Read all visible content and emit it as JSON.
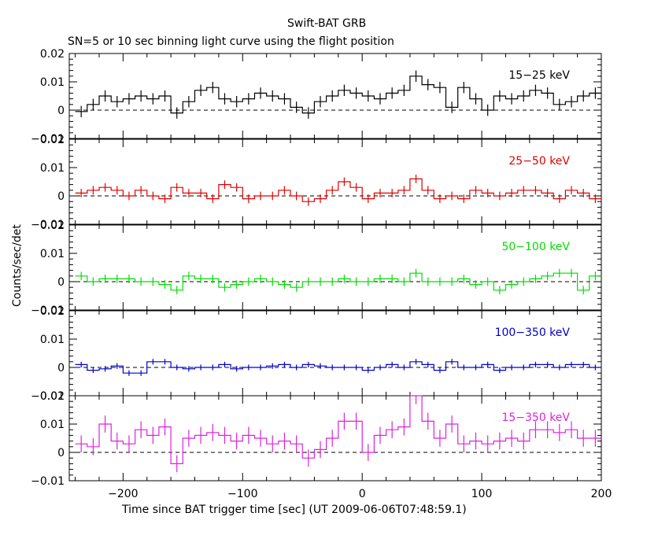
{
  "header": {
    "title": "Swift-BAT GRB",
    "subtitle": "SN=5 or 10 sec binning light curve using the flight position"
  },
  "axes": {
    "ylabel": "Counts/sec/det",
    "xlabel": "Time since BAT trigger time [sec] (UT 2009-06-06T07:48:59.1)",
    "xlim": [
      -245,
      200
    ],
    "xticks": [
      -200,
      -100,
      0,
      100,
      200
    ],
    "xtick_labels": [
      "−200",
      "−100",
      "0",
      "100",
      "200"
    ]
  },
  "chart_data": {
    "type": "line",
    "step": true,
    "bin_width_sec": 10,
    "x_start": -240,
    "x_end": 200,
    "x_centers": [
      -235,
      -225,
      -215,
      -205,
      -195,
      -185,
      -175,
      -165,
      -155,
      -145,
      -135,
      -125,
      -115,
      -105,
      -95,
      -85,
      -75,
      -65,
      -55,
      -45,
      -35,
      -25,
      -15,
      -5,
      5,
      15,
      25,
      35,
      45,
      55,
      65,
      75,
      85,
      95,
      105,
      115,
      125,
      135,
      145,
      155,
      165,
      175,
      185,
      195
    ],
    "panels": [
      {
        "name": "15−25 keV",
        "color": "#000000",
        "ylim": [
          -0.01,
          0.02
        ],
        "yticks": [
          -0.01,
          0,
          0.01,
          0.02
        ],
        "ytick_labels": [
          "−0.01",
          "0",
          "0.01",
          "0.02"
        ],
        "values": [
          -0.0005,
          0.002,
          0.005,
          0.003,
          0.004,
          0.005,
          0.004,
          0.005,
          -0.001,
          0.003,
          0.007,
          0.008,
          0.004,
          0.003,
          0.004,
          0.006,
          0.005,
          0.004,
          0.001,
          -0.001,
          0.003,
          0.005,
          0.007,
          0.006,
          0.005,
          0.004,
          0.006,
          0.007,
          0.012,
          0.009,
          0.008,
          0.001,
          0.008,
          0.004,
          0,
          0.005,
          0.004,
          0.005,
          0.007,
          0.006,
          0.002,
          0.003,
          0.005,
          0.006
        ],
        "error": 0.002
      },
      {
        "name": "25−50 keV",
        "color": "#dd0000",
        "ylim": [
          -0.01,
          0.02
        ],
        "yticks": [
          -0.01,
          0,
          0.01,
          0.02
        ],
        "ytick_labels": [
          "−0.01",
          "0",
          "0.01",
          "0.02"
        ],
        "values": [
          0.001,
          0.002,
          0.003,
          0.002,
          0,
          0.002,
          0,
          -0.001,
          0.003,
          0.001,
          0.001,
          -0.001,
          0.004,
          0.003,
          -0.001,
          0,
          0,
          0.002,
          0,
          -0.002,
          -0.001,
          0.002,
          0.005,
          0.003,
          -0.001,
          0.001,
          0.001,
          0.002,
          0.006,
          0.002,
          -0.001,
          0,
          -0.001,
          0.002,
          0.001,
          0,
          0.001,
          0.002,
          0.002,
          0.001,
          -0.001,
          0.002,
          0.001,
          -0.001
        ],
        "error": 0.0015
      },
      {
        "name": "50−100 keV",
        "color": "#00dd00",
        "ylim": [
          -0.01,
          0.02
        ],
        "yticks": [
          -0.01,
          0,
          0.01,
          0.02
        ],
        "ytick_labels": [
          "−0.01",
          "0",
          "0.01",
          "0.02"
        ],
        "values": [
          0.002,
          0,
          0.001,
          0.001,
          0.001,
          0,
          0,
          -0.001,
          -0.003,
          0.002,
          0.001,
          0.001,
          -0.002,
          -0.001,
          0,
          0.001,
          0,
          -0.001,
          -0.002,
          0,
          0,
          0,
          0.001,
          0,
          0,
          0.001,
          0.001,
          0,
          0.003,
          0,
          0,
          0,
          0.001,
          -0.001,
          0,
          -0.003,
          -0.001,
          0,
          0.001,
          0.002,
          0.003,
          0.003,
          -0.003,
          0.002
        ],
        "error": 0.0015
      },
      {
        "name": "100−350 keV",
        "color": "#0000cc",
        "ylim": [
          -0.01,
          0.02
        ],
        "yticks": [
          -0.01,
          0,
          0.01,
          0.02
        ],
        "ytick_labels": [
          "−0.01",
          "0",
          "0.01",
          "0.02"
        ],
        "values": [
          0.001,
          -0.001,
          -0.0005,
          0.0005,
          -0.002,
          -0.002,
          0.002,
          0.002,
          0,
          -0.0005,
          0,
          0,
          0.001,
          -0.0005,
          0,
          0,
          0.0005,
          0.001,
          0,
          0.001,
          0.0005,
          0,
          0,
          0,
          -0.001,
          0,
          0.001,
          0,
          0.002,
          0.001,
          -0.001,
          0.002,
          0,
          0,
          0.001,
          -0.001,
          0,
          0,
          0.001,
          0.001,
          0,
          0.001,
          0.001,
          0
        ],
        "error": 0.001
      },
      {
        "name": "15−350 keV",
        "color": "#dd22dd",
        "ylim": [
          -0.01,
          0.02
        ],
        "yticks": [
          -0.01,
          0,
          0.01,
          0.02
        ],
        "ytick_labels": [
          "−0.01",
          "0",
          "0.01",
          "0.02"
        ],
        "values": [
          0.003,
          0.002,
          0.01,
          0.004,
          0.003,
          0.008,
          0.006,
          0.009,
          -0.004,
          0.005,
          0.006,
          0.007,
          0.006,
          0.004,
          0.006,
          0.005,
          0.003,
          0.004,
          0.003,
          -0.002,
          0.001,
          0.005,
          0.011,
          0.011,
          0,
          0.006,
          0.008,
          0.009,
          0.02,
          0.011,
          0.005,
          0.01,
          0.003,
          0.004,
          0.003,
          0.004,
          0.005,
          0.004,
          0.008,
          0.008,
          0.007,
          0.008,
          0.005,
          0.005
        ],
        "error": 0.003
      }
    ]
  }
}
